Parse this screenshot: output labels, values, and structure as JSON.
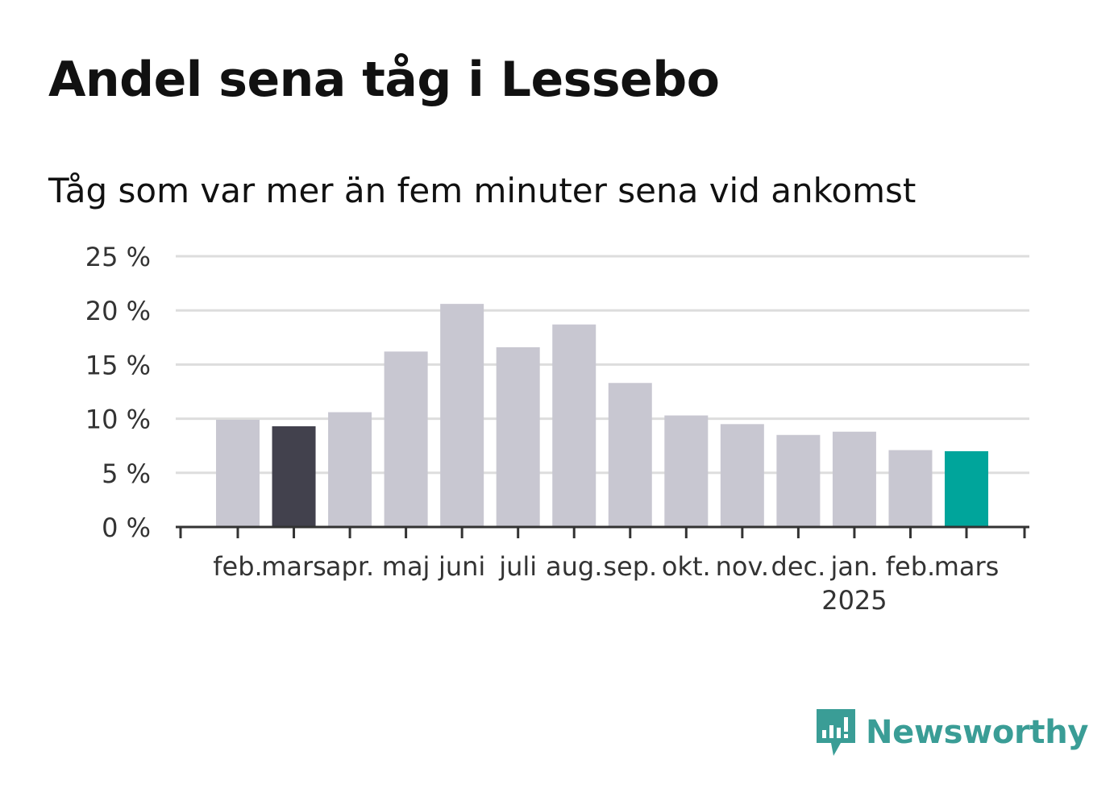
{
  "title": "Andel sena tåg i Lessebo",
  "subtitle": "Tåg som var mer än fem minuter sena vid ankomst",
  "brand": {
    "name": "Newsworthy",
    "icon": "newsworthy-logo-icon",
    "color": "#3a9d96"
  },
  "colors": {
    "default_bar": "#c8c7d1",
    "highlight_previous": "#42414d",
    "highlight_current": "#00a59b",
    "grid": "#dddddd",
    "axis": "#333333"
  },
  "chart_data": {
    "type": "bar",
    "categories": [
      "feb.",
      "mars",
      "apr.",
      "maj",
      "juni",
      "juli",
      "aug.",
      "sep.",
      "okt.",
      "nov.",
      "dec.",
      "jan.",
      "feb.",
      "mars"
    ],
    "year_labels": [
      {
        "index": 11,
        "label": "2025"
      }
    ],
    "values": [
      9.9,
      9.3,
      10.6,
      16.2,
      20.6,
      16.6,
      18.7,
      13.3,
      10.3,
      9.5,
      8.5,
      8.8,
      7.1,
      7.0
    ],
    "highlight": {
      "1": "highlight_previous",
      "13": "highlight_current"
    },
    "ylim": [
      0,
      25
    ],
    "yticks": [
      0,
      5,
      10,
      15,
      20,
      25
    ],
    "ytick_labels": [
      "0 %",
      "5 %",
      "10 %",
      "15 %",
      "20 %",
      "25 %"
    ],
    "xlabel": "",
    "ylabel": "",
    "grid": true
  }
}
